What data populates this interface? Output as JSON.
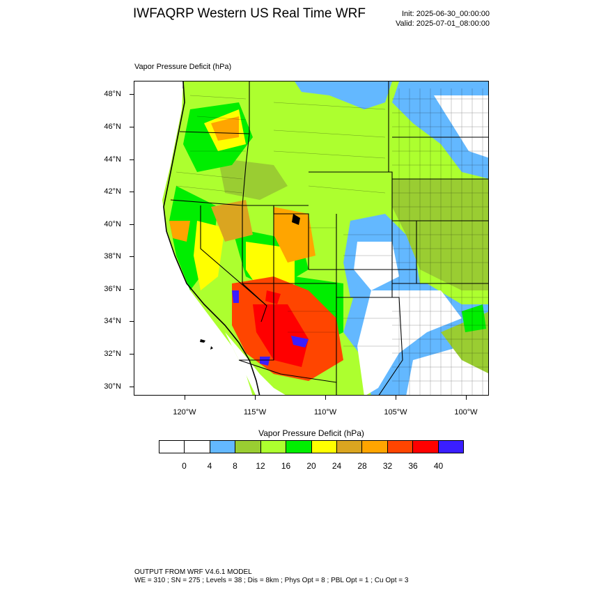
{
  "header": {
    "title": "IWFAQRP Western US Real Time WRF",
    "init": "Init: 2025-06-30_00:00:00",
    "valid": "Valid: 2025-07-01_08:00:00"
  },
  "map": {
    "variable_label": "Vapor Pressure Deficit   (hPa)",
    "lat_labels": [
      "48°N",
      "46°N",
      "44°N",
      "42°N",
      "40°N",
      "38°N",
      "36°N",
      "34°N",
      "32°N",
      "30°N"
    ],
    "lon_labels": [
      "120°W",
      "115°W",
      "110°W",
      "105°W",
      "100°W"
    ]
  },
  "colorbar": {
    "title": "Vapor Pressure Deficit  (hPa)",
    "colors": [
      "#ffffff",
      "#ffffff",
      "#63b8ff",
      "#9acd32",
      "#adff2f",
      "#00ee00",
      "#ffff00",
      "#daa520",
      "#ffa500",
      "#ff4500",
      "#ff0000",
      "#3a1eff"
    ],
    "labels": [
      "0",
      "4",
      "8",
      "12",
      "16",
      "20",
      "24",
      "28",
      "32",
      "36",
      "40"
    ]
  },
  "footer": {
    "line1": "OUTPUT FROM WRF V4.6.1 MODEL",
    "line2": "WE = 310 ; SN = 275 ; Levels = 38 ; Dis = 8km ; Phys Opt = 8 ; PBL Opt = 1 ; Cu Opt = 3"
  }
}
